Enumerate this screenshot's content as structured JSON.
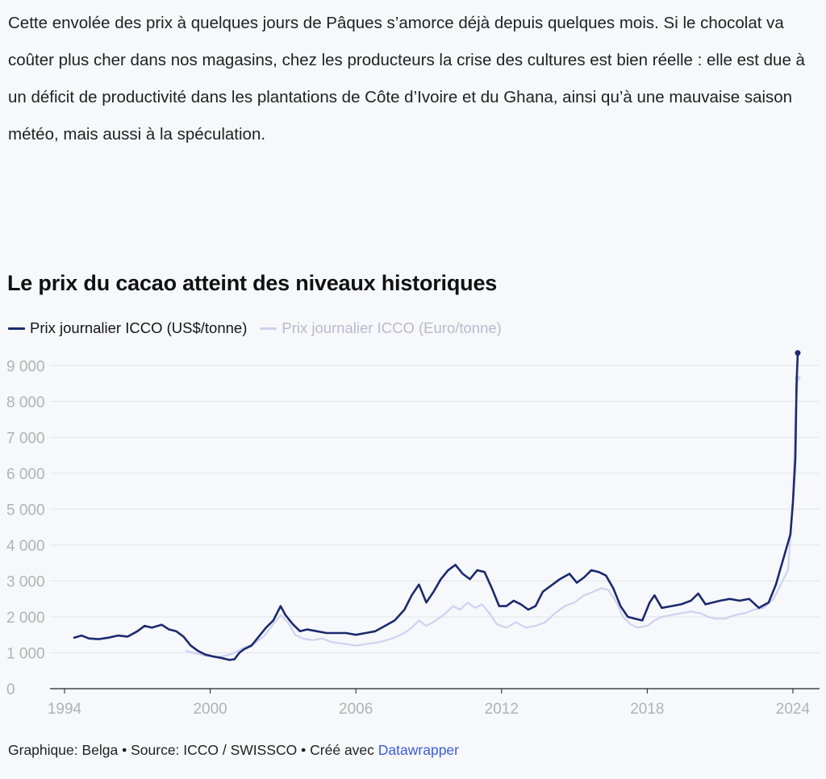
{
  "article": {
    "paragraph": "Cette envolée des prix à quelques jours de Pâques s’amorce déjà depuis quelques mois. Si le chocolat va coûter plus cher dans nos magasins, chez les producteurs la crise des cultures est bien réelle : elle est due à un déficit de productivité dans les plantations de Côte d’Ivoire et du Ghana, ainsi qu’à une mauvaise saison météo, mais aussi à la spéculation."
  },
  "colors": {
    "usd": "#1c2a6e",
    "eur": "#cdd2f2",
    "grid": "#e3e4e8",
    "axis": "#222222",
    "tick": "#b2b2b2",
    "link": "#3b5bdb"
  },
  "chart_data": {
    "type": "line",
    "title": "Le prix du cacao atteint des niveaux historiques",
    "xlabel": "",
    "ylabel": "",
    "xlim": [
      1994,
      2024.5
    ],
    "ylim": [
      0,
      9500
    ],
    "grid": true,
    "legend_position": "top-left",
    "x_ticks": [
      1994,
      2000,
      2006,
      2012,
      2018,
      2024
    ],
    "y_ticks": [
      0,
      1000,
      2000,
      3000,
      4000,
      5000,
      6000,
      7000,
      8000,
      9000
    ],
    "y_tick_labels": [
      "0",
      "1 000",
      "2 000",
      "3 000",
      "4 000",
      "5 000",
      "6 000",
      "7 000",
      "8 000",
      "9 000"
    ],
    "series": [
      {
        "name": "Prix journalier ICCO (Euro/tonne)",
        "x": [
          1999.0,
          1999.3,
          1999.6,
          1999.9,
          2000.2,
          2000.5,
          2000.8,
          2001.0,
          2001.4,
          2001.8,
          2002.2,
          2002.6,
          2002.9,
          2003.2,
          2003.5,
          2003.8,
          2004.2,
          2004.6,
          2005.0,
          2005.5,
          2006.0,
          2006.5,
          2007.0,
          2007.5,
          2008.0,
          2008.3,
          2008.6,
          2008.9,
          2009.3,
          2009.7,
          2010.0,
          2010.3,
          2010.6,
          2010.9,
          2011.2,
          2011.5,
          2011.8,
          2012.2,
          2012.6,
          2013.0,
          2013.4,
          2013.8,
          2014.2,
          2014.6,
          2015.0,
          2015.4,
          2015.8,
          2016.1,
          2016.4,
          2016.7,
          2017.0,
          2017.3,
          2017.6,
          2018.0,
          2018.3,
          2018.6,
          2019.0,
          2019.4,
          2019.8,
          2020.2,
          2020.5,
          2020.8,
          2021.2,
          2021.6,
          2022.0,
          2022.4,
          2022.8,
          2023.2,
          2023.5,
          2023.8,
          2024.0,
          2024.1,
          2024.2
        ],
        "values": [
          1050,
          1000,
          950,
          900,
          880,
          900,
          950,
          1000,
          1150,
          1250,
          1450,
          1800,
          2050,
          1850,
          1500,
          1400,
          1350,
          1400,
          1300,
          1250,
          1200,
          1250,
          1300,
          1400,
          1550,
          1700,
          1900,
          1750,
          1900,
          2100,
          2300,
          2200,
          2400,
          2250,
          2350,
          2100,
          1800,
          1700,
          1850,
          1700,
          1750,
          1850,
          2100,
          2300,
          2400,
          2600,
          2700,
          2800,
          2750,
          2450,
          2000,
          1800,
          1700,
          1750,
          1900,
          2000,
          2050,
          2100,
          2150,
          2100,
          2000,
          1950,
          1950,
          2050,
          2100,
          2200,
          2250,
          2500,
          2900,
          3300,
          5200,
          7600,
          8650
        ]
      },
      {
        "name": "Prix journalier ICCO (US$/tonne)",
        "x": [
          1994.4,
          1994.7,
          1995.0,
          1995.4,
          1995.8,
          1996.2,
          1996.6,
          1997.0,
          1997.3,
          1997.6,
          1998.0,
          1998.3,
          1998.6,
          1998.9,
          1999.2,
          1999.5,
          1999.8,
          2000.1,
          2000.5,
          2000.8,
          2001.0,
          2001.2,
          2001.4,
          2001.7,
          2002.0,
          2002.3,
          2002.6,
          2002.9,
          2003.1,
          2003.4,
          2003.7,
          2004.0,
          2004.4,
          2004.8,
          2005.2,
          2005.6,
          2006.0,
          2006.4,
          2006.8,
          2007.2,
          2007.6,
          2008.0,
          2008.3,
          2008.6,
          2008.9,
          2009.2,
          2009.5,
          2009.8,
          2010.1,
          2010.4,
          2010.7,
          2011.0,
          2011.3,
          2011.6,
          2011.9,
          2012.2,
          2012.5,
          2012.8,
          2013.1,
          2013.4,
          2013.7,
          2014.0,
          2014.4,
          2014.8,
          2015.1,
          2015.4,
          2015.7,
          2016.0,
          2016.3,
          2016.6,
          2016.9,
          2017.2,
          2017.5,
          2017.8,
          2018.1,
          2018.3,
          2018.6,
          2019.0,
          2019.4,
          2019.8,
          2020.1,
          2020.4,
          2020.7,
          2021.0,
          2021.4,
          2021.8,
          2022.2,
          2022.6,
          2023.0,
          2023.3,
          2023.6,
          2023.9,
          2024.0,
          2024.1,
          2024.15,
          2024.2
        ],
        "values": [
          1420,
          1480,
          1400,
          1380,
          1420,
          1480,
          1450,
          1600,
          1750,
          1700,
          1780,
          1650,
          1600,
          1450,
          1200,
          1050,
          950,
          900,
          850,
          800,
          820,
          1000,
          1100,
          1200,
          1450,
          1700,
          1900,
          2300,
          2050,
          1800,
          1600,
          1650,
          1600,
          1550,
          1550,
          1550,
          1500,
          1550,
          1600,
          1750,
          1900,
          2200,
          2600,
          2900,
          2400,
          2700,
          3050,
          3300,
          3450,
          3200,
          3050,
          3300,
          3250,
          2800,
          2300,
          2300,
          2450,
          2350,
          2200,
          2300,
          2700,
          2850,
          3050,
          3200,
          2950,
          3100,
          3300,
          3250,
          3150,
          2800,
          2300,
          2000,
          1950,
          1900,
          2400,
          2600,
          2250,
          2300,
          2350,
          2450,
          2650,
          2350,
          2400,
          2450,
          2500,
          2450,
          2500,
          2250,
          2400,
          2900,
          3600,
          4300,
          5200,
          6400,
          8500,
          9350
        ]
      }
    ]
  },
  "legend": {
    "items": [
      {
        "label": "Prix journalier ICCO (US$/tonne)"
      },
      {
        "label": "Prix journalier ICCO (Euro/tonne)"
      }
    ]
  },
  "footer": {
    "graphic": "Graphique: Belga",
    "separator": "•",
    "source": "Source: ICCO / SWISSCO",
    "created": "Créé avec",
    "link": "Datawrapper"
  }
}
